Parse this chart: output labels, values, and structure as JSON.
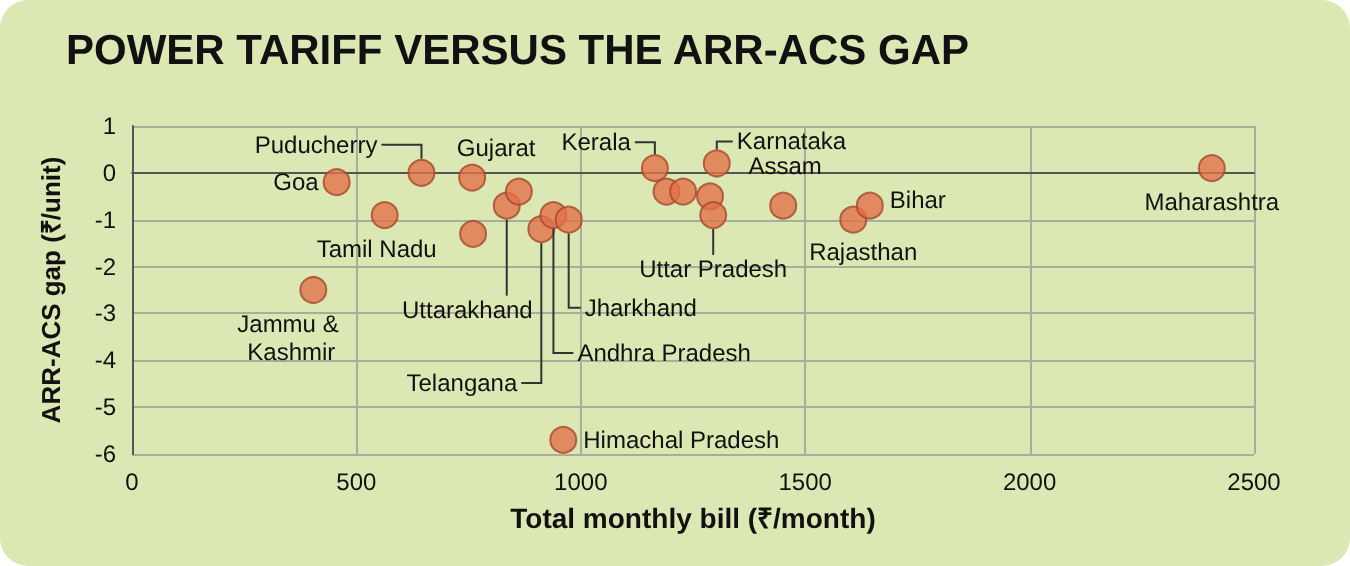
{
  "chart_data": {
    "type": "scatter",
    "title": "POWER TARIFF VERSUS THE ARR-ACS GAP",
    "xlabel": "Total monthly bill (₹/month)",
    "ylabel": "ARR-ACS gap (₹/unit)",
    "x": [
      456,
      645,
      758,
      563,
      760,
      835,
      862,
      912,
      939,
      973,
      961,
      404,
      1165,
      1303,
      1191,
      1228,
      1288,
      1295,
      1451,
      1607,
      1644,
      2406
    ],
    "values": [
      -0.2,
      0.0,
      -0.1,
      -0.9,
      -1.3,
      -0.7,
      -0.4,
      -1.2,
      -0.9,
      -1.0,
      -5.7,
      -2.5,
      0.1,
      0.2,
      -0.4,
      -0.4,
      -0.5,
      -0.9,
      -0.7,
      -1.0,
      -0.7,
      0.1
    ],
    "color": "#e2704a",
    "marker": "circle",
    "xlim": [
      0,
      2500
    ],
    "xticks": [
      0,
      500,
      1000,
      1500,
      2000,
      2500
    ],
    "ylim": [
      -6,
      1
    ],
    "yticks": [
      -6,
      -5,
      -4,
      -3,
      -2,
      -1,
      0,
      1
    ],
    "grid": true,
    "annotations": [
      {
        "text": "Goa",
        "x": 456,
        "y": -0.2
      },
      {
        "text": "Puducherry",
        "x": 645,
        "y": 0.0
      },
      {
        "text": "Gujarat",
        "x": 758,
        "y": -0.1
      },
      {
        "text": "Tamil Nadu",
        "x": 563,
        "y": -0.9
      },
      {
        "text": "Jammu & Kashmir",
        "x": 404,
        "y": -2.5
      },
      {
        "text": "Uttarakhand",
        "x": 835,
        "y": -0.7
      },
      {
        "text": "Telangana",
        "x": 912,
        "y": -1.2
      },
      {
        "text": "Andhra Pradesh",
        "x": 939,
        "y": -0.9
      },
      {
        "text": "Jharkhand",
        "x": 973,
        "y": -1.0
      },
      {
        "text": "Himachal Pradesh",
        "x": 961,
        "y": -5.7
      },
      {
        "text": "Kerala",
        "x": 1165,
        "y": 0.1
      },
      {
        "text": "Karnataka",
        "x": 1303,
        "y": 0.2
      },
      {
        "text": "Uttar Pradesh",
        "x": 1295,
        "y": -0.9
      },
      {
        "text": "Assam",
        "x": 1451,
        "y": -0.7
      },
      {
        "text": "Rajasthan",
        "x": 1607,
        "y": -1.0
      },
      {
        "text": "Bihar",
        "x": 1644,
        "y": -0.7
      },
      {
        "text": "Maharashtra",
        "x": 2406,
        "y": 0.1
      }
    ]
  }
}
